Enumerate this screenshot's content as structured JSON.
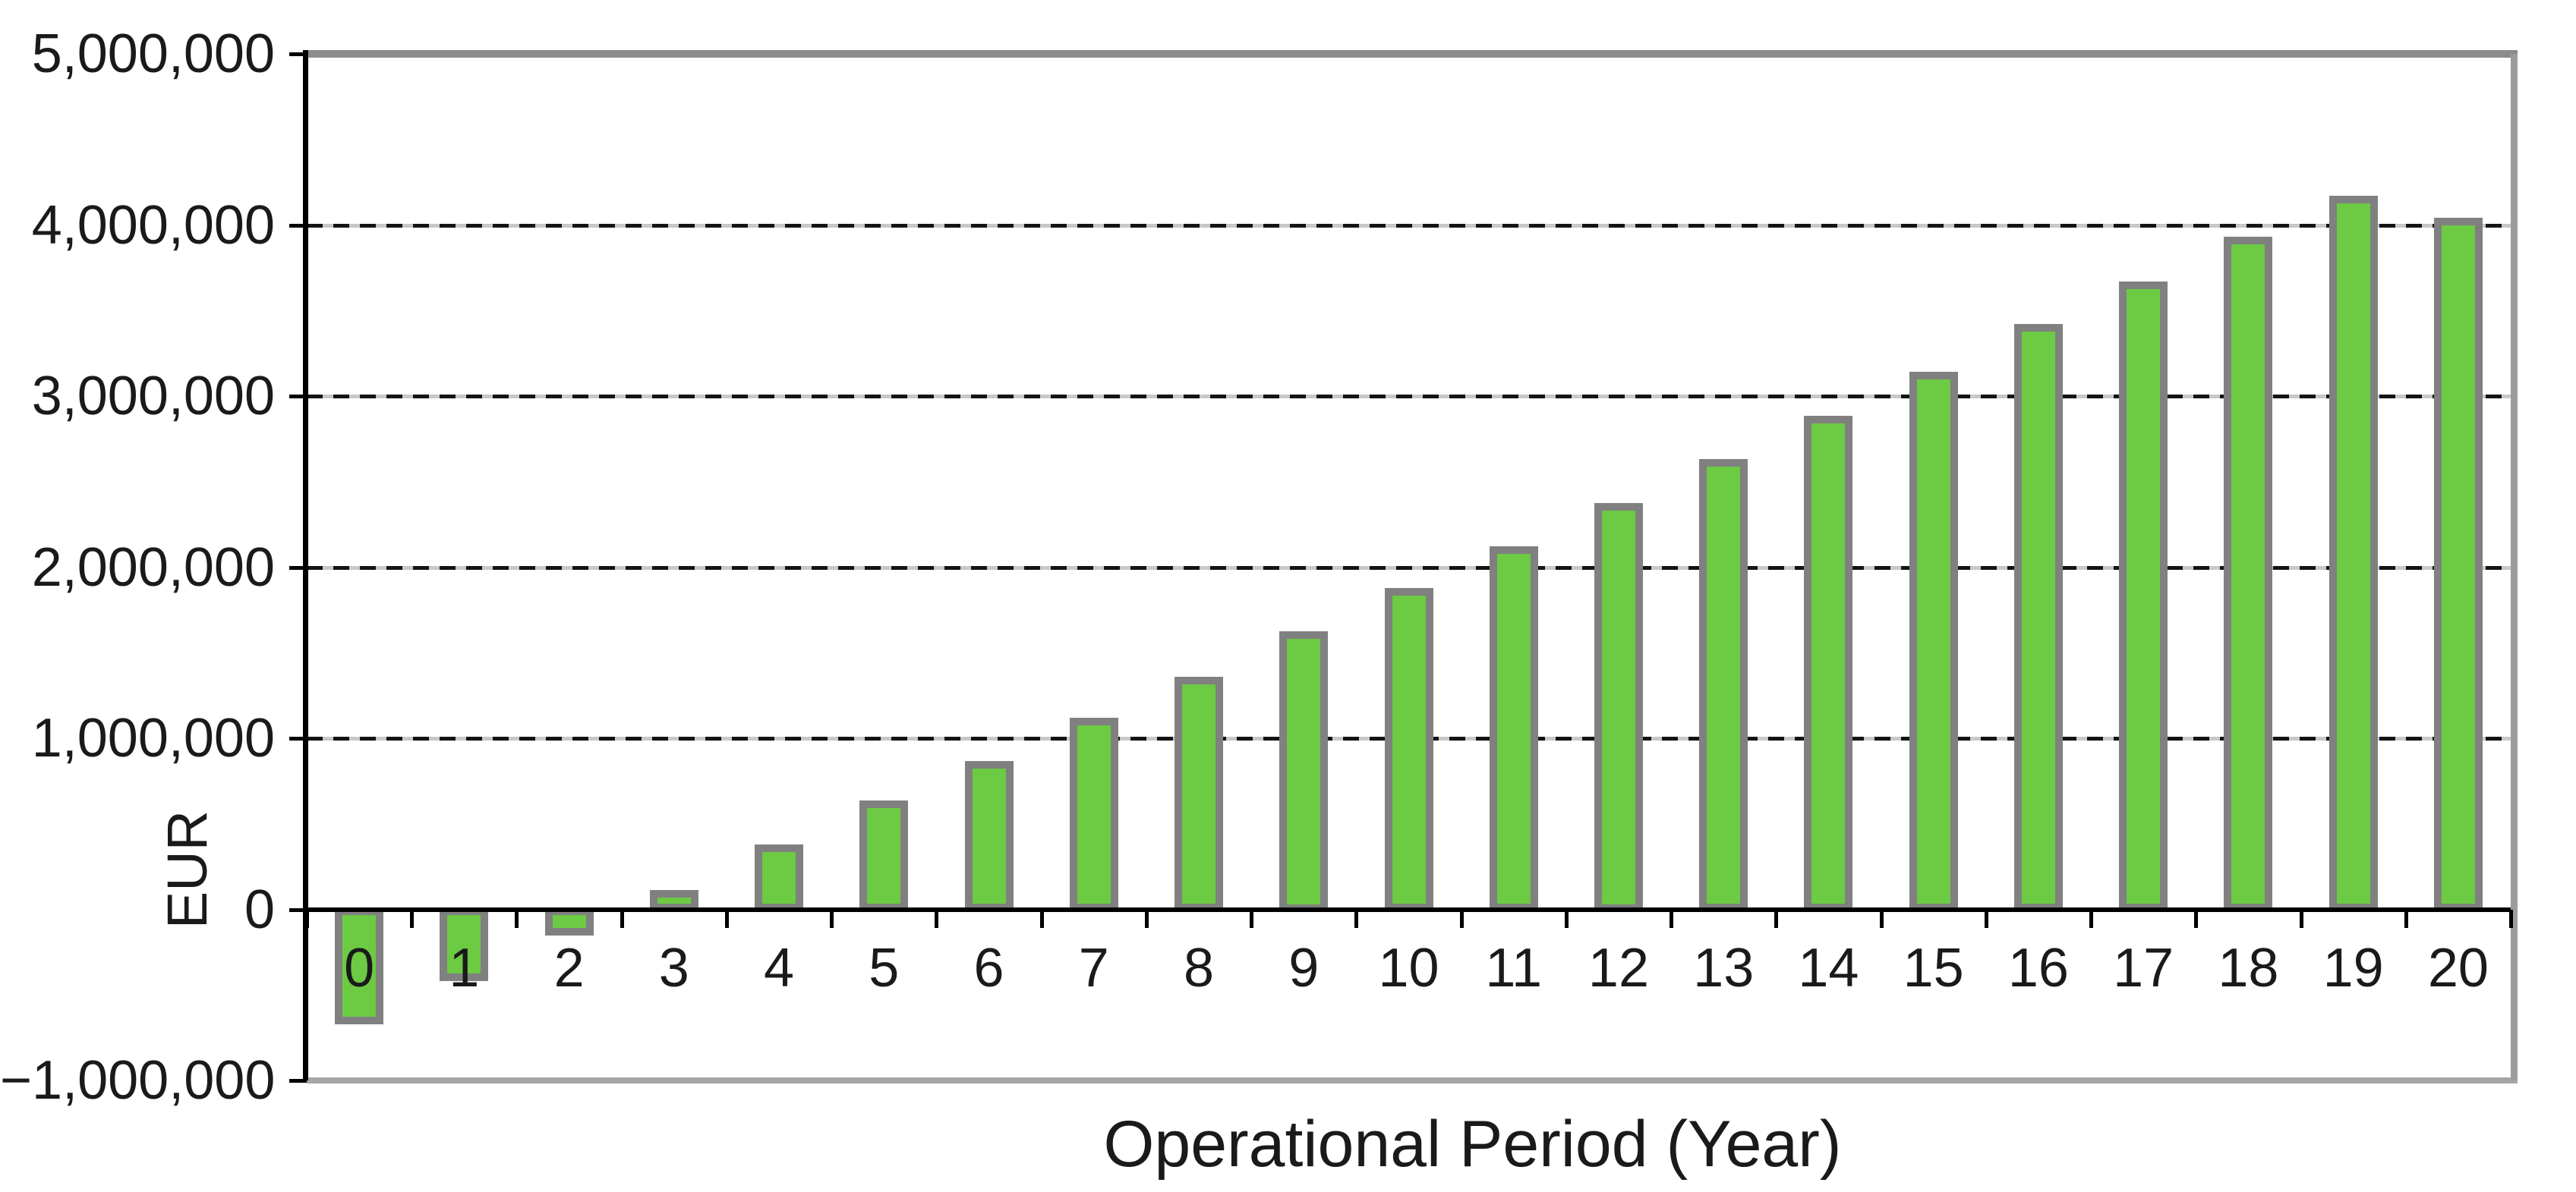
{
  "chart_data": {
    "type": "bar",
    "title": "",
    "xlabel": "Operational Period (Year)",
    "ylabel": "EUR",
    "categories": [
      "0",
      "1",
      "2",
      "3",
      "4",
      "5",
      "6",
      "7",
      "8",
      "9",
      "10",
      "11",
      "12",
      "13",
      "14",
      "15",
      "16",
      "17",
      "18",
      "19",
      "20"
    ],
    "values": [
      -670000,
      -420000,
      -155000,
      115000,
      380000,
      635000,
      865000,
      1120000,
      1360000,
      1625000,
      1880000,
      2120000,
      2375000,
      2630000,
      2885000,
      3140000,
      3420000,
      3670000,
      3930000,
      4170000,
      4040000
    ],
    "ylim": [
      -1000000,
      5000000
    ],
    "ytick_step": 1000000,
    "yticks": [
      {
        "value": 5000000,
        "label": "5,000,000"
      },
      {
        "value": 4000000,
        "label": "4,000,000"
      },
      {
        "value": 3000000,
        "label": "3,000,000"
      },
      {
        "value": 2000000,
        "label": "2,000,000"
      },
      {
        "value": 1000000,
        "label": "1,000,000"
      },
      {
        "value": 0,
        "label": "0"
      },
      {
        "value": -1000000,
        "label": "−1,000,000"
      }
    ],
    "grid": "horizontal-dashed",
    "legend": "none",
    "bar_color": "#6CCA43",
    "bar_border_color": "#808080",
    "axis_color": "#000000",
    "frame_top_color": "#8C8C8C",
    "frame_right_color": "#9C9C9C",
    "frame_bottom_color": "#A6A6A6"
  }
}
